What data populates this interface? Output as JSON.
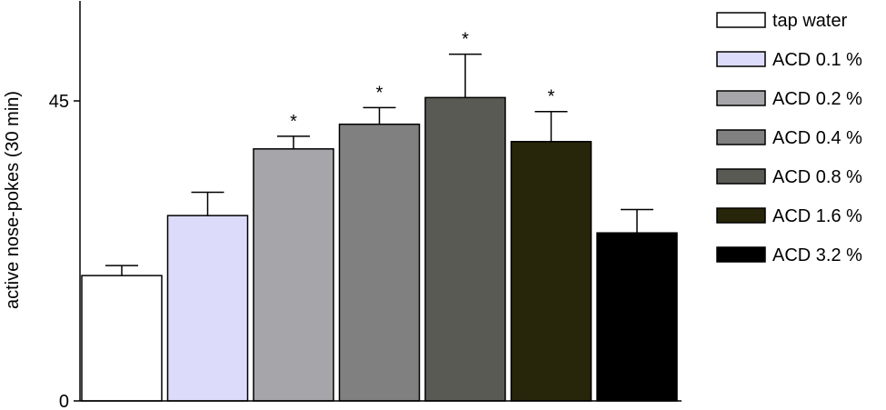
{
  "chart_data": {
    "type": "bar",
    "y_label": "active nose-pokes (30 min)",
    "ylim": [
      0,
      60
    ],
    "yticks": [
      0,
      45
    ],
    "legend": "right",
    "series": [
      {
        "name": "tap water",
        "color": "#ffffff",
        "values": [
          18.8
        ],
        "errors": [
          1.5
        ]
      },
      {
        "name": "ACD 0.1 %",
        "color": "#dcdcfa",
        "values": [
          27.8
        ],
        "errors": [
          3.5
        ]
      },
      {
        "name": "ACD 0.2 %",
        "color": "#a6a6aa",
        "values": [
          37.8
        ],
        "errors": [
          1.9
        ],
        "annotation": "*"
      },
      {
        "name": "ACD 0.4 %",
        "color": "#808080",
        "values": [
          41.5
        ],
        "errors": [
          2.5
        ],
        "annotation": "*"
      },
      {
        "name": "ACD 0.8 %",
        "color": "#5a5a55",
        "values": [
          45.5
        ],
        "errors": [
          6.5
        ],
        "annotation": "*"
      },
      {
        "name": "ACD 1.6 %",
        "color": "#27250a",
        "values": [
          38.9
        ],
        "errors": [
          4.5
        ],
        "annotation": "*"
      },
      {
        "name": "ACD 3.2 %",
        "color": "#000000",
        "values": [
          25.2
        ],
        "errors": [
          3.5
        ]
      }
    ]
  }
}
